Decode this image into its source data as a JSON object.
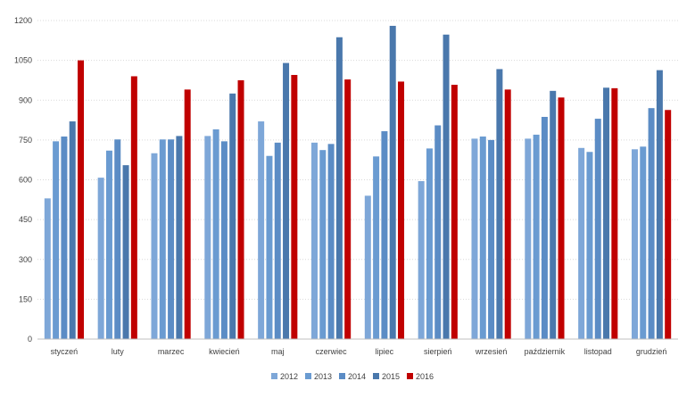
{
  "chart_data": {
    "type": "bar",
    "title": "",
    "xlabel": "",
    "ylabel": "",
    "ylim": [
      0,
      1200
    ],
    "yticks": [
      0,
      150,
      300,
      450,
      600,
      750,
      900,
      1050,
      1200
    ],
    "ytick_labels": [
      "0",
      "150",
      "300",
      "450",
      "600",
      "750",
      "900",
      "1050",
      "1200"
    ],
    "grid": "horizontal dotted",
    "legend_position": "bottom",
    "categories": [
      "styczeń",
      "luty",
      "marzec",
      "kwiecień",
      "maj",
      "czerwiec",
      "lipiec",
      "sierpień",
      "wrzesień",
      "październik",
      "listopad",
      "grudzień"
    ],
    "series": [
      {
        "name": "2012",
        "color": "#7EA7D8",
        "values": [
          530,
          608,
          700,
          765,
          820,
          740,
          540,
          595,
          755,
          755,
          720,
          715
        ]
      },
      {
        "name": "2013",
        "color": "#6A9BD1",
        "values": [
          745,
          710,
          752,
          790,
          690,
          712,
          688,
          718,
          763,
          770,
          705,
          725
        ]
      },
      {
        "name": "2014",
        "color": "#5B8CC5",
        "values": [
          763,
          752,
          752,
          745,
          740,
          735,
          783,
          805,
          750,
          837,
          830,
          870
        ]
      },
      {
        "name": "2015",
        "color": "#4A78AC",
        "values": [
          820,
          655,
          765,
          925,
          1040,
          1137,
          1180,
          1147,
          1017,
          935,
          947,
          1013
        ]
      },
      {
        "name": "2016",
        "color": "#C00000",
        "values": [
          1050,
          990,
          940,
          975,
          995,
          978,
          970,
          958,
          940,
          910,
          945,
          863
        ]
      }
    ]
  }
}
